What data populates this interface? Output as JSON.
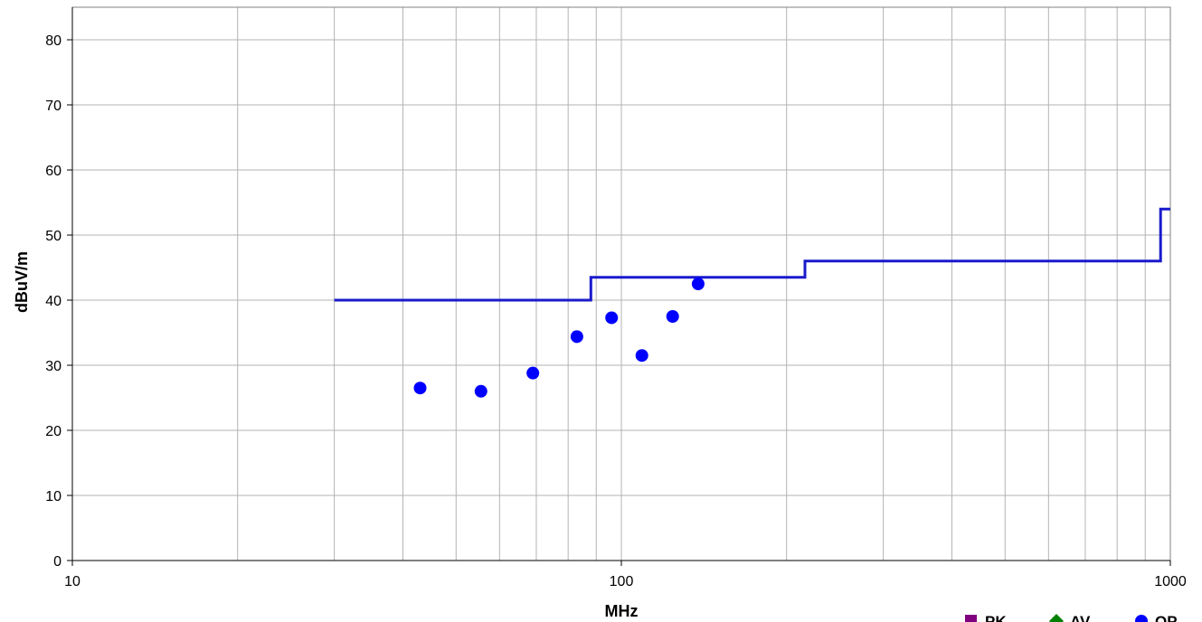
{
  "chart_data": {
    "type": "scatter",
    "x_scale": "log",
    "xlim": [
      10,
      1000
    ],
    "ylim": [
      0,
      85
    ],
    "xlabel": "MHz",
    "ylabel": "dBuV/m",
    "grid": true,
    "x_ticks": [
      10,
      100,
      1000
    ],
    "x_tick_labels": [
      "10",
      "100",
      "1000"
    ],
    "y_ticks": [
      0,
      10,
      20,
      30,
      40,
      50,
      60,
      70,
      80
    ],
    "y_tick_labels": [
      "0",
      "10",
      "20",
      "30",
      "40",
      "50",
      "60",
      "70",
      "80"
    ],
    "limit_line": {
      "color": "#1a1acc",
      "points": [
        [
          30,
          40
        ],
        [
          88,
          40
        ],
        [
          88,
          43.5
        ],
        [
          216,
          43.5
        ],
        [
          216,
          46
        ],
        [
          960,
          46
        ],
        [
          960,
          54
        ],
        [
          1000,
          54
        ]
      ]
    },
    "series": [
      {
        "name": "PK",
        "marker": "square",
        "color": "#800080",
        "points": []
      },
      {
        "name": "AV",
        "marker": "diamond",
        "color": "#008000",
        "points": []
      },
      {
        "name": "QP",
        "marker": "circle",
        "color": "#0000ff",
        "points": [
          [
            43,
            26.5
          ],
          [
            55.5,
            26.0
          ],
          [
            69,
            28.8
          ],
          [
            83,
            34.4
          ],
          [
            96,
            37.3
          ],
          [
            109,
            31.5
          ],
          [
            124,
            37.5
          ],
          [
            138,
            42.5
          ]
        ]
      }
    ],
    "legend": {
      "position": "bottom-right",
      "entries": [
        "PK",
        "AV",
        "QP"
      ]
    }
  }
}
